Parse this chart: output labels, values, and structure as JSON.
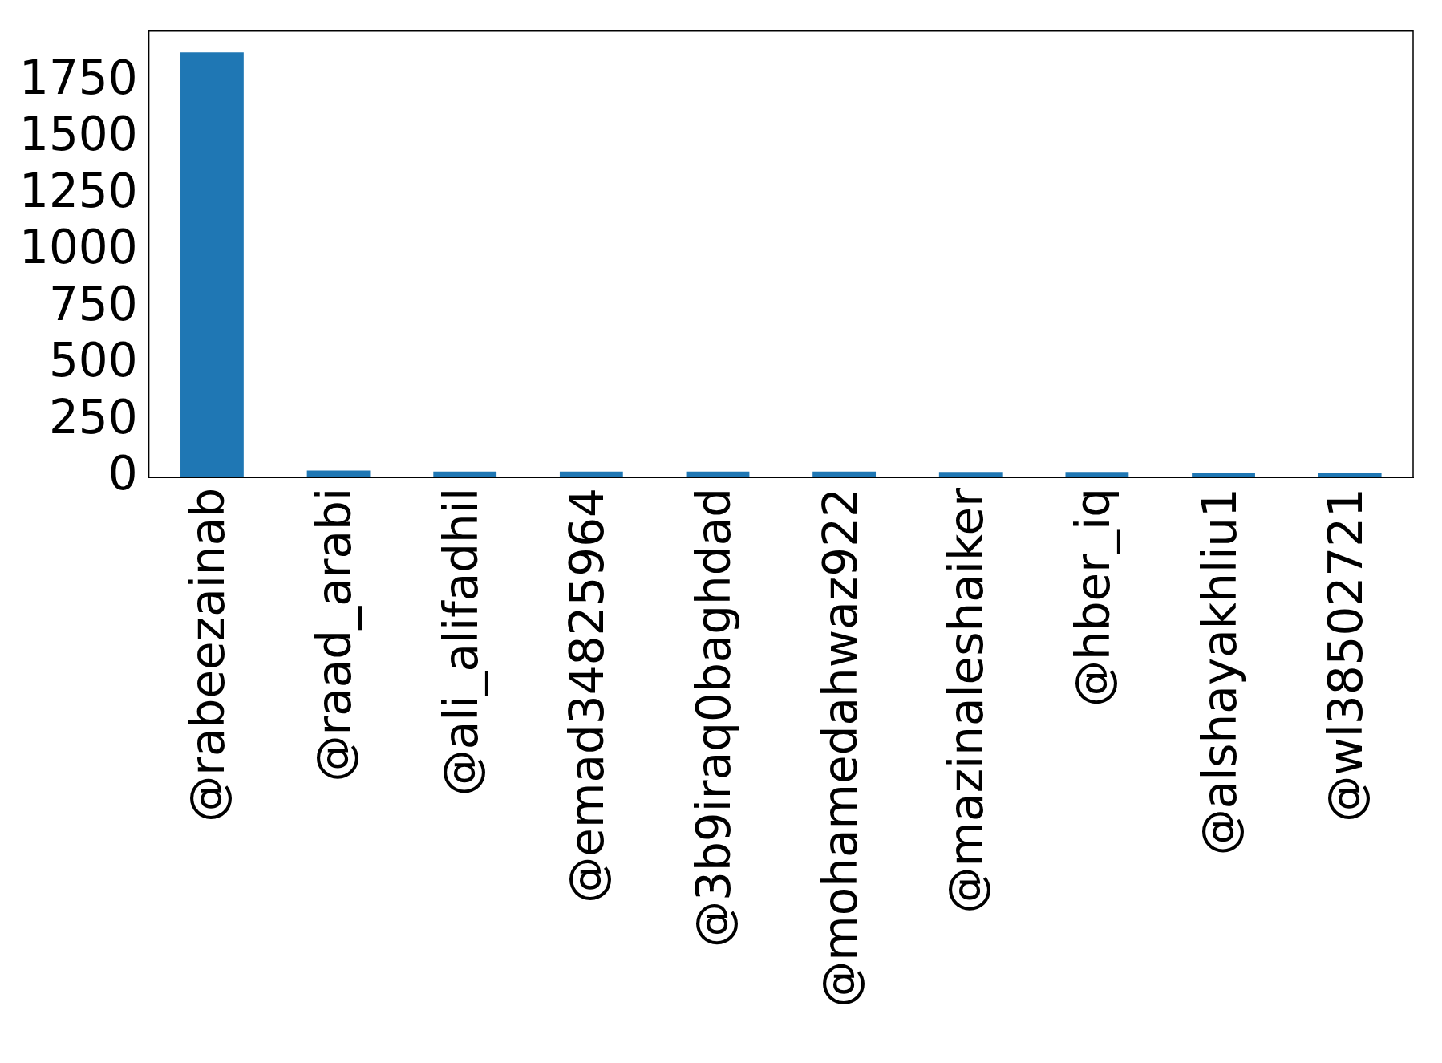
{
  "chart_data": {
    "type": "bar",
    "categories": [
      "@rabeezainab",
      "@raad_arabi",
      "@ali_alifadhil",
      "@emad34825964",
      "@3b9iraq0baghdad",
      "@mohamedahwaz922",
      "@mazinaleshaiker",
      "@hber_iq",
      "@alshayakhliu1",
      "@wl38502721"
    ],
    "values": [
      1880,
      30,
      26,
      26,
      26,
      26,
      24,
      24,
      21,
      20
    ],
    "color": "#1f77b4",
    "ylim": [
      0,
      1974
    ],
    "yticks": [
      0,
      250,
      500,
      750,
      1000,
      1250,
      1500,
      1750
    ],
    "grid": false,
    "legend": false
  }
}
